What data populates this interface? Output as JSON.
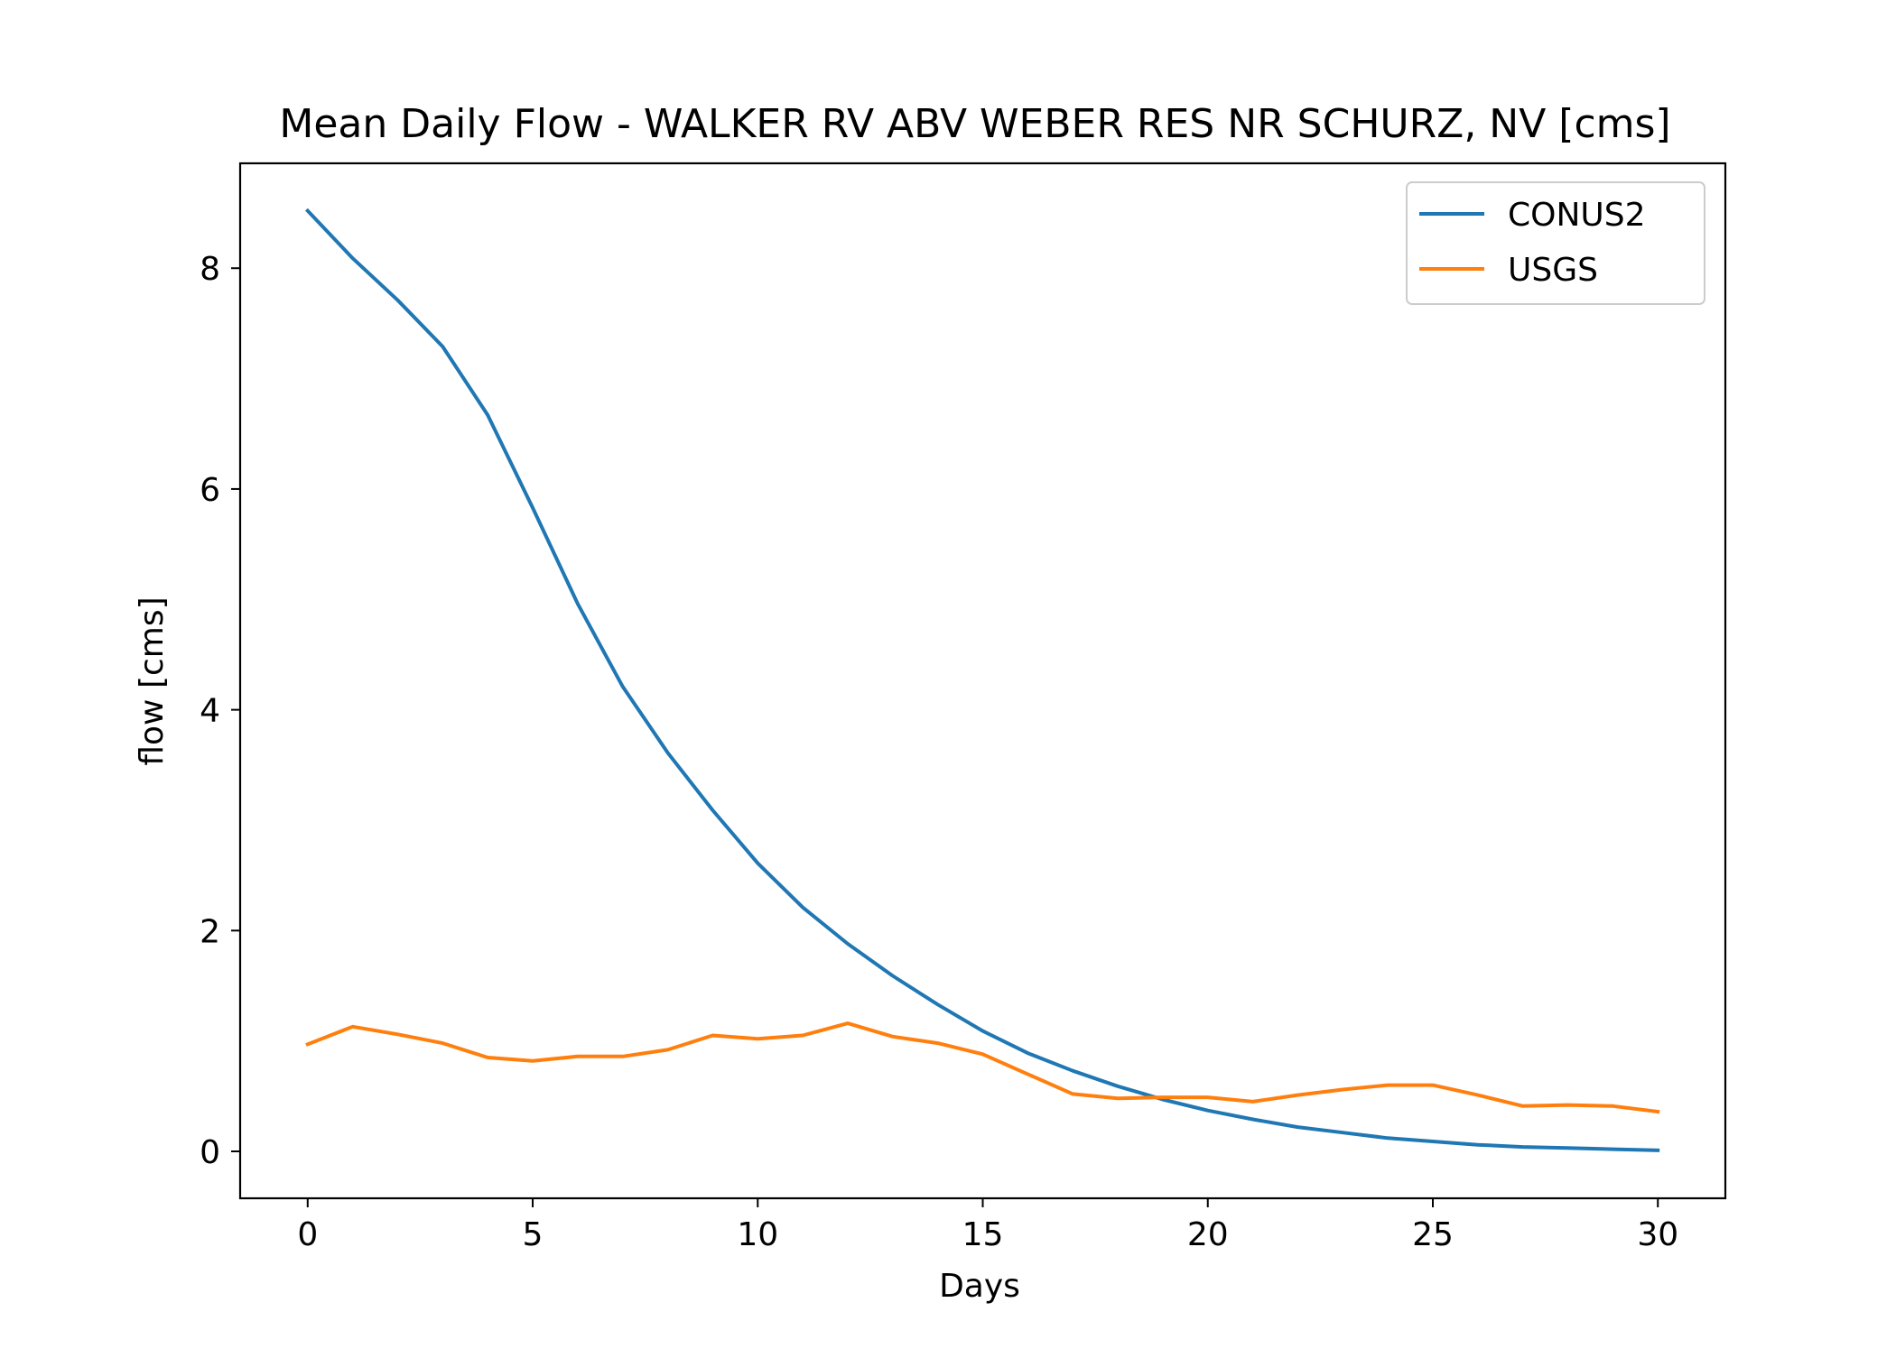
{
  "chart_data": {
    "type": "line",
    "title": "Mean Daily Flow - WALKER RV ABV WEBER RES NR SCHURZ, NV [cms]",
    "xlabel": "Days",
    "ylabel": "flow [cms]",
    "xlim": [
      -1.5,
      31.5
    ],
    "ylim": [
      -0.425,
      8.95
    ],
    "xticks": [
      0,
      5,
      10,
      15,
      20,
      25,
      30
    ],
    "xtick_labels": [
      "0",
      "5",
      "10",
      "15",
      "20",
      "25",
      "30"
    ],
    "yticks": [
      0,
      2,
      4,
      6,
      8
    ],
    "ytick_labels": [
      "0",
      "2",
      "4",
      "6",
      "8"
    ],
    "grid": false,
    "legend_position": "upper right",
    "x": [
      0,
      1,
      2,
      3,
      4,
      5,
      6,
      7,
      8,
      9,
      10,
      11,
      12,
      13,
      14,
      15,
      16,
      17,
      18,
      19,
      20,
      21,
      22,
      23,
      24,
      25,
      26,
      27,
      28,
      29,
      30
    ],
    "series": [
      {
        "name": "CONUS2",
        "color": "#1f77b4",
        "values": [
          8.52,
          8.09,
          7.71,
          7.29,
          6.67,
          5.83,
          4.96,
          4.21,
          3.61,
          3.09,
          2.61,
          2.21,
          1.88,
          1.59,
          1.33,
          1.09,
          0.89,
          0.73,
          0.59,
          0.47,
          0.37,
          0.29,
          0.22,
          0.17,
          0.12,
          0.09,
          0.06,
          0.04,
          0.03,
          0.02,
          0.01
        ]
      },
      {
        "name": "USGS",
        "color": "#ff7f0e",
        "values": [
          0.97,
          1.13,
          1.06,
          0.98,
          0.85,
          0.82,
          0.86,
          0.86,
          0.92,
          1.05,
          1.02,
          1.05,
          1.16,
          1.04,
          0.98,
          0.88,
          0.7,
          0.52,
          0.48,
          0.49,
          0.49,
          0.45,
          0.51,
          0.56,
          0.6,
          0.6,
          0.51,
          0.41,
          0.42,
          0.41,
          0.36
        ]
      }
    ]
  }
}
